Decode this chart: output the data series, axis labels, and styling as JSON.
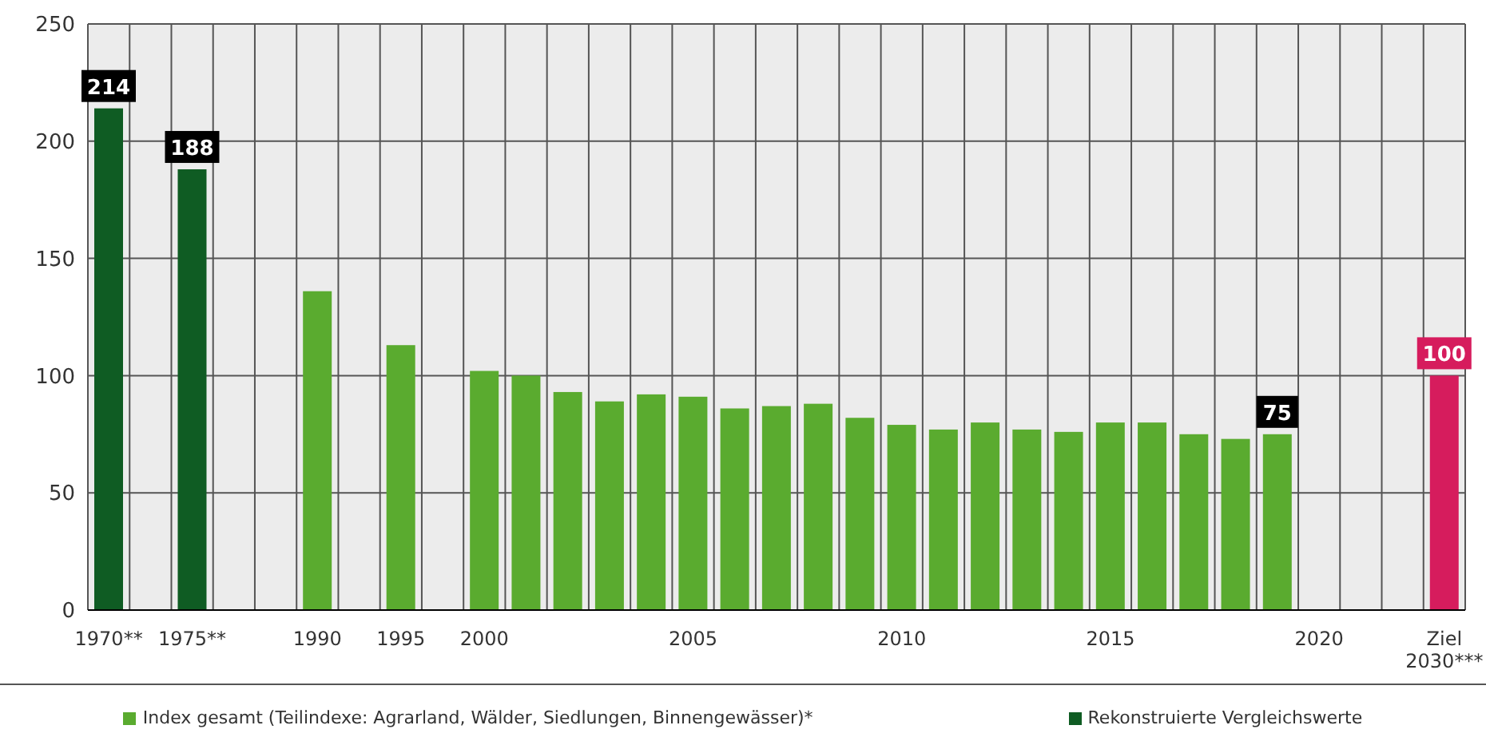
{
  "chart_data": {
    "type": "bar",
    "categories": [
      "1970**",
      null,
      "1975**",
      null,
      null,
      "1990",
      null,
      "1995",
      null,
      "2000",
      null,
      null,
      null,
      null,
      "2005",
      null,
      null,
      null,
      null,
      "2010",
      null,
      null,
      null,
      null,
      "2015",
      null,
      null,
      null,
      null,
      "2020",
      null,
      null,
      "Ziel 2030***"
    ],
    "series": [
      {
        "name": "Index gesamt (Teilindexe: Agrarland, Wälder, Siedlungen, Binnengewässer)*",
        "color": "#5aab2f",
        "values": [
          null,
          null,
          null,
          null,
          null,
          136,
          null,
          113,
          null,
          102,
          100,
          93,
          89,
          92,
          91,
          86,
          87,
          88,
          82,
          79,
          77,
          80,
          77,
          76,
          80,
          80,
          75,
          73,
          75,
          null,
          null,
          null,
          null
        ],
        "value_labels": [
          null,
          null,
          null,
          null,
          null,
          null,
          null,
          null,
          null,
          null,
          null,
          null,
          null,
          null,
          null,
          null,
          null,
          null,
          null,
          null,
          null,
          null,
          null,
          null,
          null,
          null,
          null,
          null,
          "75",
          null,
          null,
          null,
          null
        ]
      },
      {
        "name": "Rekonstruierte Vergleichswerte",
        "color": "#0f5c23",
        "values": [
          214,
          null,
          188,
          null,
          null,
          null,
          null,
          null,
          null,
          null,
          null,
          null,
          null,
          null,
          null,
          null,
          null,
          null,
          null,
          null,
          null,
          null,
          null,
          null,
          null,
          null,
          null,
          null,
          null,
          null,
          null,
          null,
          null
        ],
        "value_labels": [
          "214",
          null,
          "188",
          null,
          null,
          null,
          null,
          null,
          null,
          null,
          null,
          null,
          null,
          null,
          null,
          null,
          null,
          null,
          null,
          null,
          null,
          null,
          null,
          null,
          null,
          null,
          null,
          null,
          null,
          null,
          null,
          null,
          null
        ]
      },
      {
        "color": "#d61c5d",
        "values": [
          null,
          null,
          null,
          null,
          null,
          null,
          null,
          null,
          null,
          null,
          null,
          null,
          null,
          null,
          null,
          null,
          null,
          null,
          null,
          null,
          null,
          null,
          null,
          null,
          null,
          null,
          null,
          null,
          null,
          null,
          null,
          null,
          100
        ],
        "value_labels": [
          null,
          null,
          null,
          null,
          null,
          null,
          null,
          null,
          null,
          null,
          null,
          null,
          null,
          null,
          null,
          null,
          null,
          null,
          null,
          null,
          null,
          null,
          null,
          null,
          null,
          null,
          null,
          null,
          null,
          null,
          null,
          null,
          "100"
        ]
      }
    ],
    "ylim": [
      0,
      250
    ],
    "yticks": [
      0,
      50,
      100,
      150,
      200,
      250
    ],
    "grid": true,
    "legend": "bottom"
  }
}
